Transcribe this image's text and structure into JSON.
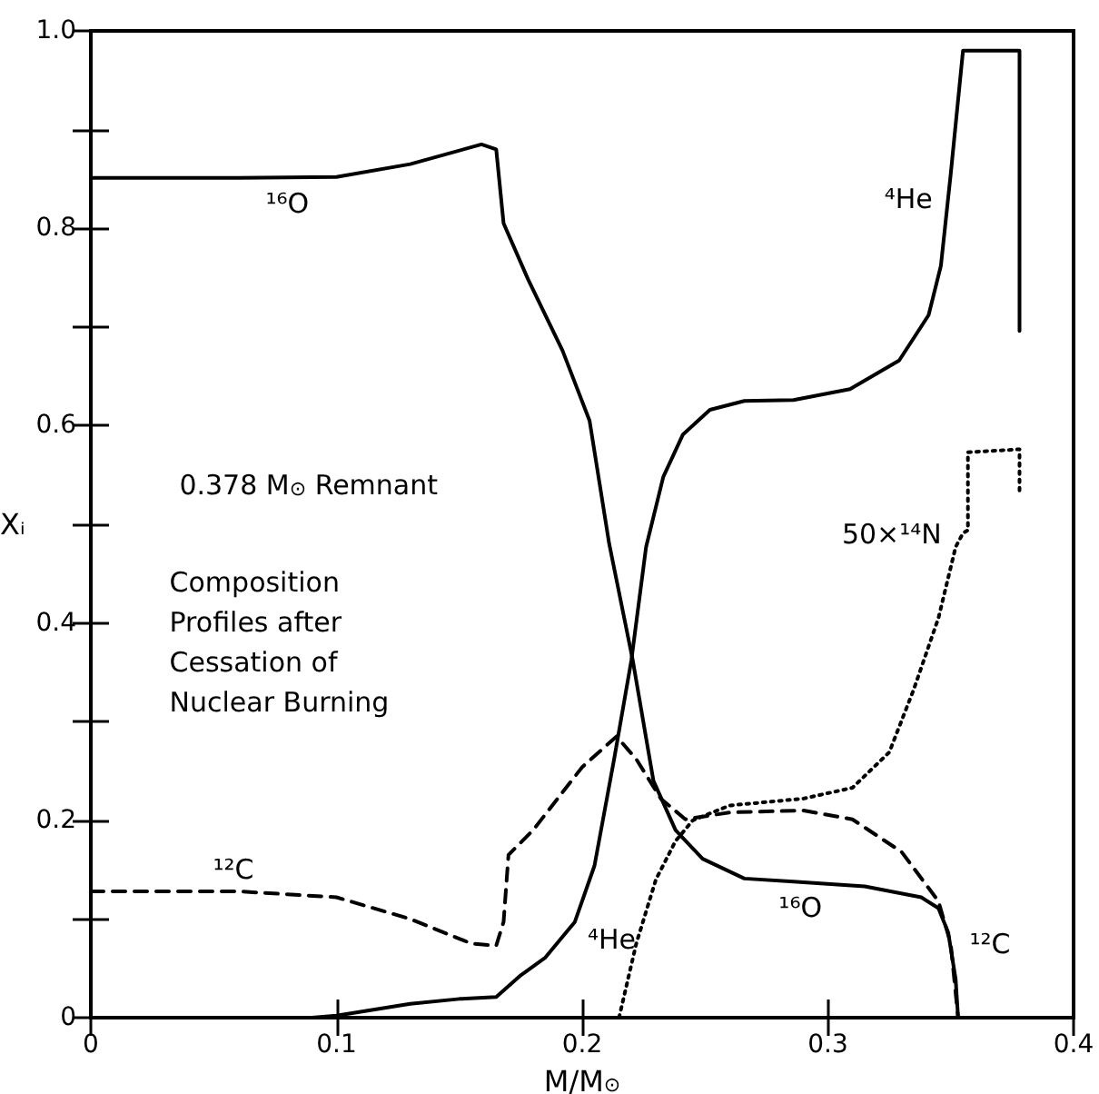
{
  "chart_data": {
    "type": "line",
    "xlabel": "M/M$_{⊙}$",
    "ylabel": "Xᵢ",
    "xlim": [
      0,
      0.4
    ],
    "ylim": [
      0,
      1
    ],
    "xticks": [
      0,
      0.1,
      0.2,
      0.3,
      0.4
    ],
    "yticks": [
      0,
      {
        "value": 0.1,
        "label": null
      },
      0.2,
      {
        "value": 0.3,
        "label": null
      },
      0.4,
      {
        "value": 0.5,
        "label": null
      },
      0.6,
      {
        "value": 0.7,
        "label": null
      },
      0.8,
      {
        "value": 0.9,
        "label": null
      },
      {
        "value": 1,
        "label": "1.0"
      }
    ],
    "grid": false,
    "marker": "none",
    "series": [
      {
        "color": "#000000",
        "line_style": "solid",
        "x": [
          0,
          0.06,
          0.1,
          0.13,
          0.159,
          0.165,
          0.168,
          0.178,
          0.192,
          0.203,
          0.211,
          0.2206,
          0.229,
          0.238,
          0.249,
          0.266,
          0.286,
          0.315,
          0.338,
          0.345,
          0.349,
          0.352,
          0.353
        ],
        "values": [
          0.851,
          0.851,
          0.852,
          0.865,
          0.885,
          0.88,
          0.805,
          0.748,
          0.676,
          0.605,
          0.48,
          0.362,
          0.24,
          0.19,
          0.161,
          0.141,
          0.138,
          0.133,
          0.122,
          0.111,
          0.086,
          0.039,
          0
        ]
      },
      {
        "color": "#000000",
        "line_style": "solid",
        "x": [
          0,
          0.09,
          0.1,
          0.13,
          0.15,
          0.165,
          0.175,
          0.185,
          0.197,
          0.205,
          0.213,
          0.22,
          0.226,
          0.233,
          0.241,
          0.252,
          0.266,
          0.286,
          0.309,
          0.329,
          0.341,
          0.346,
          0.35,
          0.355,
          0.378,
          0.378
        ],
        "values": [
          0,
          0,
          0.002,
          0.014,
          0.019,
          0.021,
          0.043,
          0.061,
          0.097,
          0.154,
          0.262,
          0.362,
          0.477,
          0.548,
          0.591,
          0.616,
          0.625,
          0.626,
          0.637,
          0.666,
          0.712,
          0.762,
          0.855,
          0.98,
          0.98,
          0.696
        ]
      },
      {
        "color": "#000000",
        "line_style": "dashed",
        "x": [
          0,
          0.06,
          0.1,
          0.13,
          0.155,
          0.165,
          0.168,
          0.17,
          0.18,
          0.2,
          0.214,
          0.222,
          0.232,
          0.242,
          0.26,
          0.29,
          0.31,
          0.33,
          0.345,
          0.35,
          0.353
        ],
        "values": [
          0.128,
          0.128,
          0.122,
          0.1,
          0.075,
          0.073,
          0.097,
          0.165,
          0.19,
          0.254,
          0.285,
          0.262,
          0.222,
          0.201,
          0.208,
          0.21,
          0.201,
          0.168,
          0.118,
          0.075,
          0
        ]
      },
      {
        "color": "#000000",
        "line_style": "dotted",
        "x": [
          0.215,
          0.222,
          0.23,
          0.238,
          0.245,
          0.26,
          0.29,
          0.31,
          0.325,
          0.335,
          0.345,
          0.352,
          0.355,
          0.357,
          0.357,
          0.378,
          0.378
        ],
        "values": [
          0,
          0.075,
          0.14,
          0.179,
          0.2,
          0.215,
          0.222,
          0.233,
          0.269,
          0.333,
          0.405,
          0.477,
          0.491,
          0.494,
          0.573,
          0.576,
          0.534
        ]
      }
    ],
    "annotations": [
      "¹⁶O",
      "⁴He",
      "50×¹⁴N",
      "¹²C",
      "⁴He",
      "¹⁶O",
      "¹²C",
      "0.378 M$_{⊙}$ Remnant",
      "Composition\nProfiles after\nCessation of\nNuclear Burning"
    ]
  }
}
